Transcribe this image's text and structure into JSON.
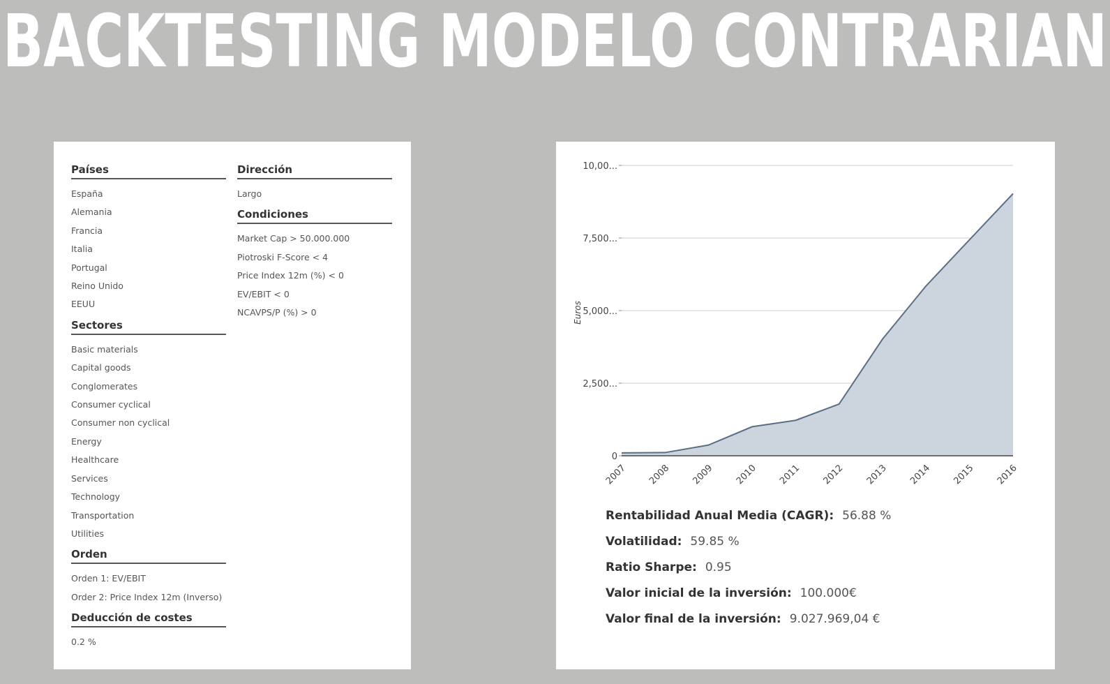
{
  "title": "BACKTESTING MODELO CONTRARIAN",
  "left_panel": {
    "columns": [
      [
        {
          "heading": "Países",
          "items": [
            "España",
            "Alemania",
            "Francia",
            "Italia",
            "Portugal",
            "Reino Unido",
            "EEUU"
          ]
        },
        {
          "heading": "Sectores",
          "items": [
            "Basic materials",
            "Capital goods",
            "Conglomerates",
            "Consumer cyclical",
            "Consumer non cyclical",
            "Energy",
            "Healthcare",
            "Services",
            "Technology",
            "Transportation",
            "Utilities"
          ]
        },
        {
          "heading": "Orden",
          "items": [
            "Orden 1: EV/EBIT",
            "Order 2: Price Index 12m (Inverso)"
          ]
        },
        {
          "heading": "Deducción de costes",
          "items": [
            "0.2 %"
          ]
        }
      ],
      [
        {
          "heading": "Dirección",
          "items": [
            "Largo"
          ]
        },
        {
          "heading": "Condiciones",
          "items": [
            "Market Cap > 50.000.000",
            "Piotroski F-Score < 4",
            "Price Index 12m (%) < 0",
            "EV/EBIT < 0",
            "NCAVPS/P (%) > 0"
          ]
        }
      ]
    ]
  },
  "chart_data": {
    "type": "area",
    "ylabel": "Euros",
    "categories": [
      "2007",
      "2008",
      "2009",
      "2010",
      "2011",
      "2012",
      "2013",
      "2014",
      "2015",
      "2016"
    ],
    "values": [
      100000,
      110000,
      370000,
      1000000,
      1220000,
      1780000,
      4020000,
      5850000,
      7440000,
      9027969
    ],
    "color": "#ccd4de",
    "line_color": "#5a6e85",
    "ylim": [
      0,
      10000000
    ],
    "yticks": [
      0,
      {
        "value": 2500000,
        "label": "2,500..."
      },
      {
        "value": 5000000,
        "label": "5,000..."
      },
      {
        "value": 7500000,
        "label": "7,500..."
      },
      {
        "value": 10000000,
        "label": "10,00..."
      }
    ],
    "grid": true
  },
  "stats": [
    {
      "label": "Rentabilidad Anual Media (CAGR):",
      "value": "56.88 %"
    },
    {
      "label": "Volatilidad:",
      "value": "59.85 %"
    },
    {
      "label": "Ratio Sharpe:",
      "value": "0.95"
    },
    {
      "label": "Valor inicial de la inversión:",
      "value": "100.000€"
    },
    {
      "label": "Valor final de la inversión:",
      "value": "9.027.969,04 €"
    }
  ]
}
